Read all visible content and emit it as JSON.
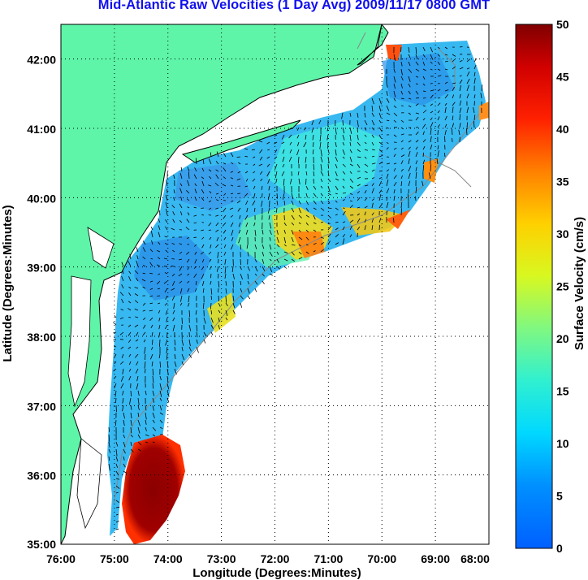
{
  "title": "Mid-Atlantic Raw Velocities (1 Day Avg) 2009/11/17 0800 GMT",
  "map": {
    "xlabel": "Longitude (Degrees:Minutes)",
    "ylabel": "Latitude (Degrees:Minutes)",
    "lon_range": [
      -76,
      -68
    ],
    "lat_range": [
      35,
      42.5
    ],
    "lon_ticks": [
      "76:00",
      "75:00",
      "74:00",
      "73:00",
      "72:00",
      "71:00",
      "70:00",
      "69:00",
      "68:00"
    ],
    "lat_ticks": [
      "35:00",
      "36:00",
      "37:00",
      "38:00",
      "39:00",
      "40:00",
      "41:00",
      "42:00"
    ],
    "land_color": "#5ef5a8",
    "grid": "dotted"
  },
  "colorbar": {
    "label": "Surface Velocity (cm/s)",
    "min": 0,
    "max": 50,
    "ticks": [
      "0",
      "5",
      "10",
      "15",
      "20",
      "25",
      "30",
      "35",
      "40",
      "45",
      "50"
    ],
    "colormap": "jet"
  }
}
